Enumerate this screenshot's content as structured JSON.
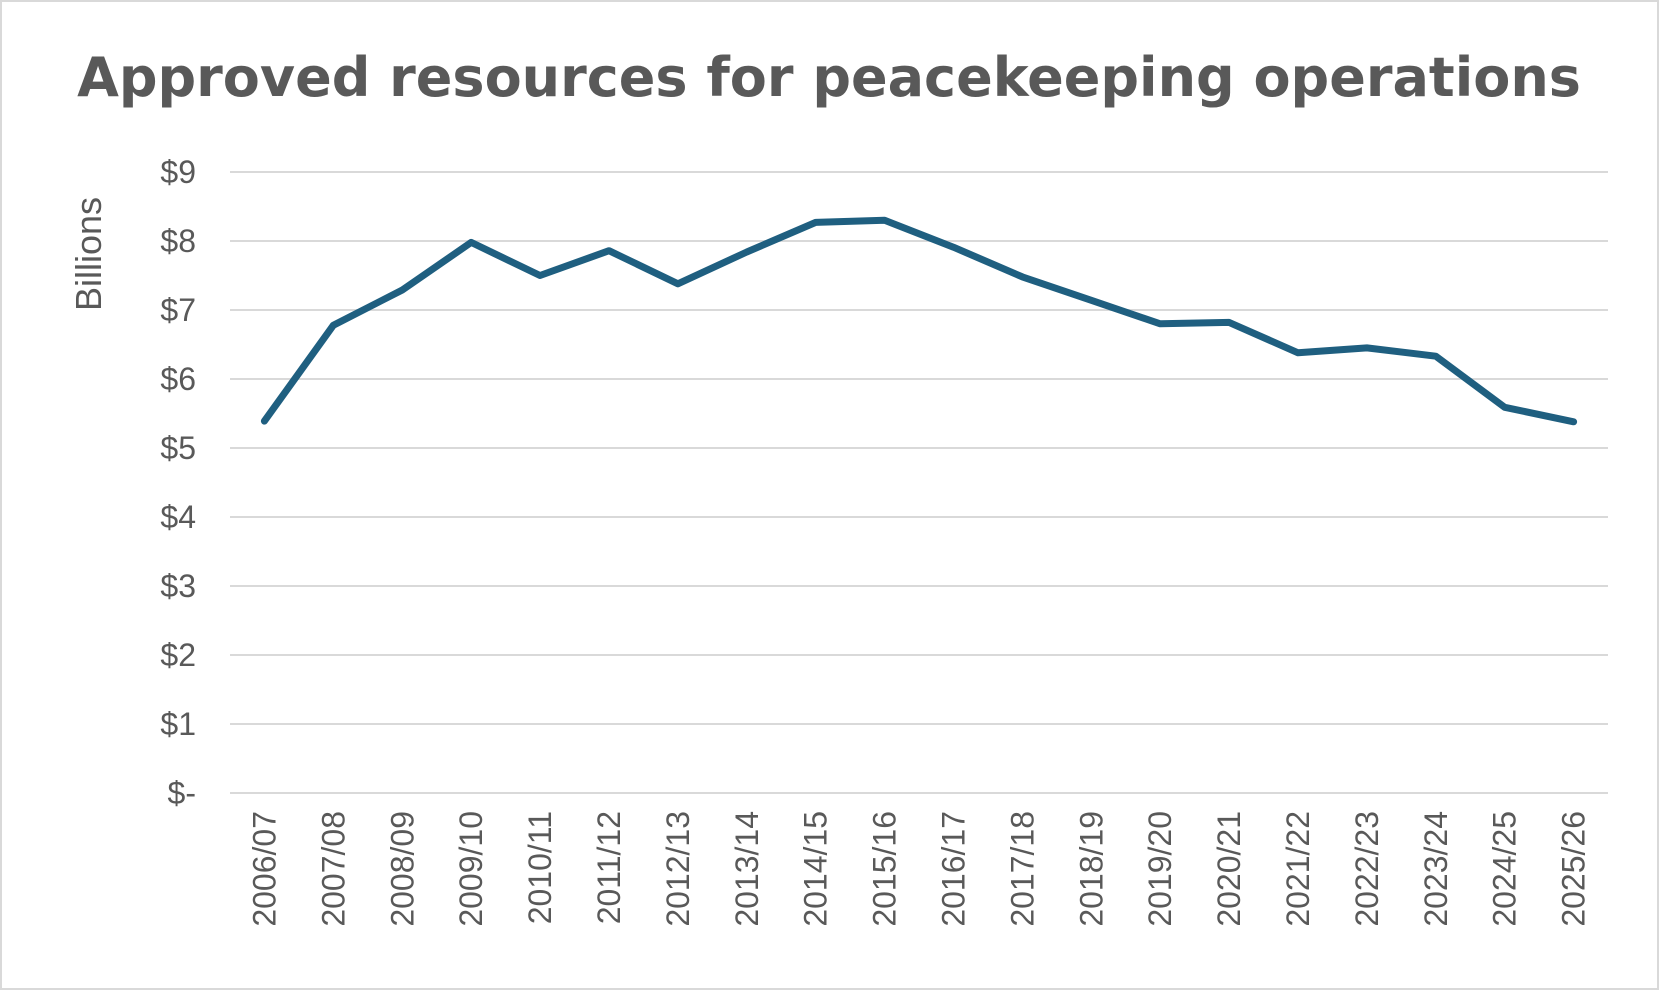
{
  "chart_data": {
    "type": "line",
    "title": "Approved resources for peacekeeping operations",
    "ylabel": "Billions",
    "xlabel": "",
    "ylim": [
      0,
      9
    ],
    "y_ticks": [
      {
        "value": 0,
        "label": "$-"
      },
      {
        "value": 1,
        "label": "$1"
      },
      {
        "value": 2,
        "label": "$2"
      },
      {
        "value": 3,
        "label": "$3"
      },
      {
        "value": 4,
        "label": "$4"
      },
      {
        "value": 5,
        "label": "$5"
      },
      {
        "value": 6,
        "label": "$6"
      },
      {
        "value": 7,
        "label": "$7"
      },
      {
        "value": 8,
        "label": "$8"
      },
      {
        "value": 9,
        "label": "$9"
      }
    ],
    "grid": true,
    "legend": "none",
    "colors": {
      "line": "#1f5f80",
      "grid": "#d9d9d9",
      "text": "#595959",
      "frame": "#d9d9d9"
    },
    "categories": [
      "2006/07",
      "2007/08",
      "2008/09",
      "2009/10",
      "2010/11",
      "2011/12",
      "2012/13",
      "2013/14",
      "2014/15",
      "2015/16",
      "2016/17",
      "2017/18",
      "2018/19",
      "2019/20",
      "2020/21",
      "2021/22",
      "2022/23",
      "2023/24",
      "2024/25",
      "2025/26"
    ],
    "series": [
      {
        "values": [
          5.39,
          6.78,
          7.29,
          7.98,
          7.5,
          7.86,
          7.38,
          7.84,
          8.27,
          8.3,
          7.91,
          7.48,
          7.14,
          6.8,
          6.82,
          6.38,
          6.45,
          6.33,
          5.59,
          5.38
        ]
      }
    ]
  }
}
